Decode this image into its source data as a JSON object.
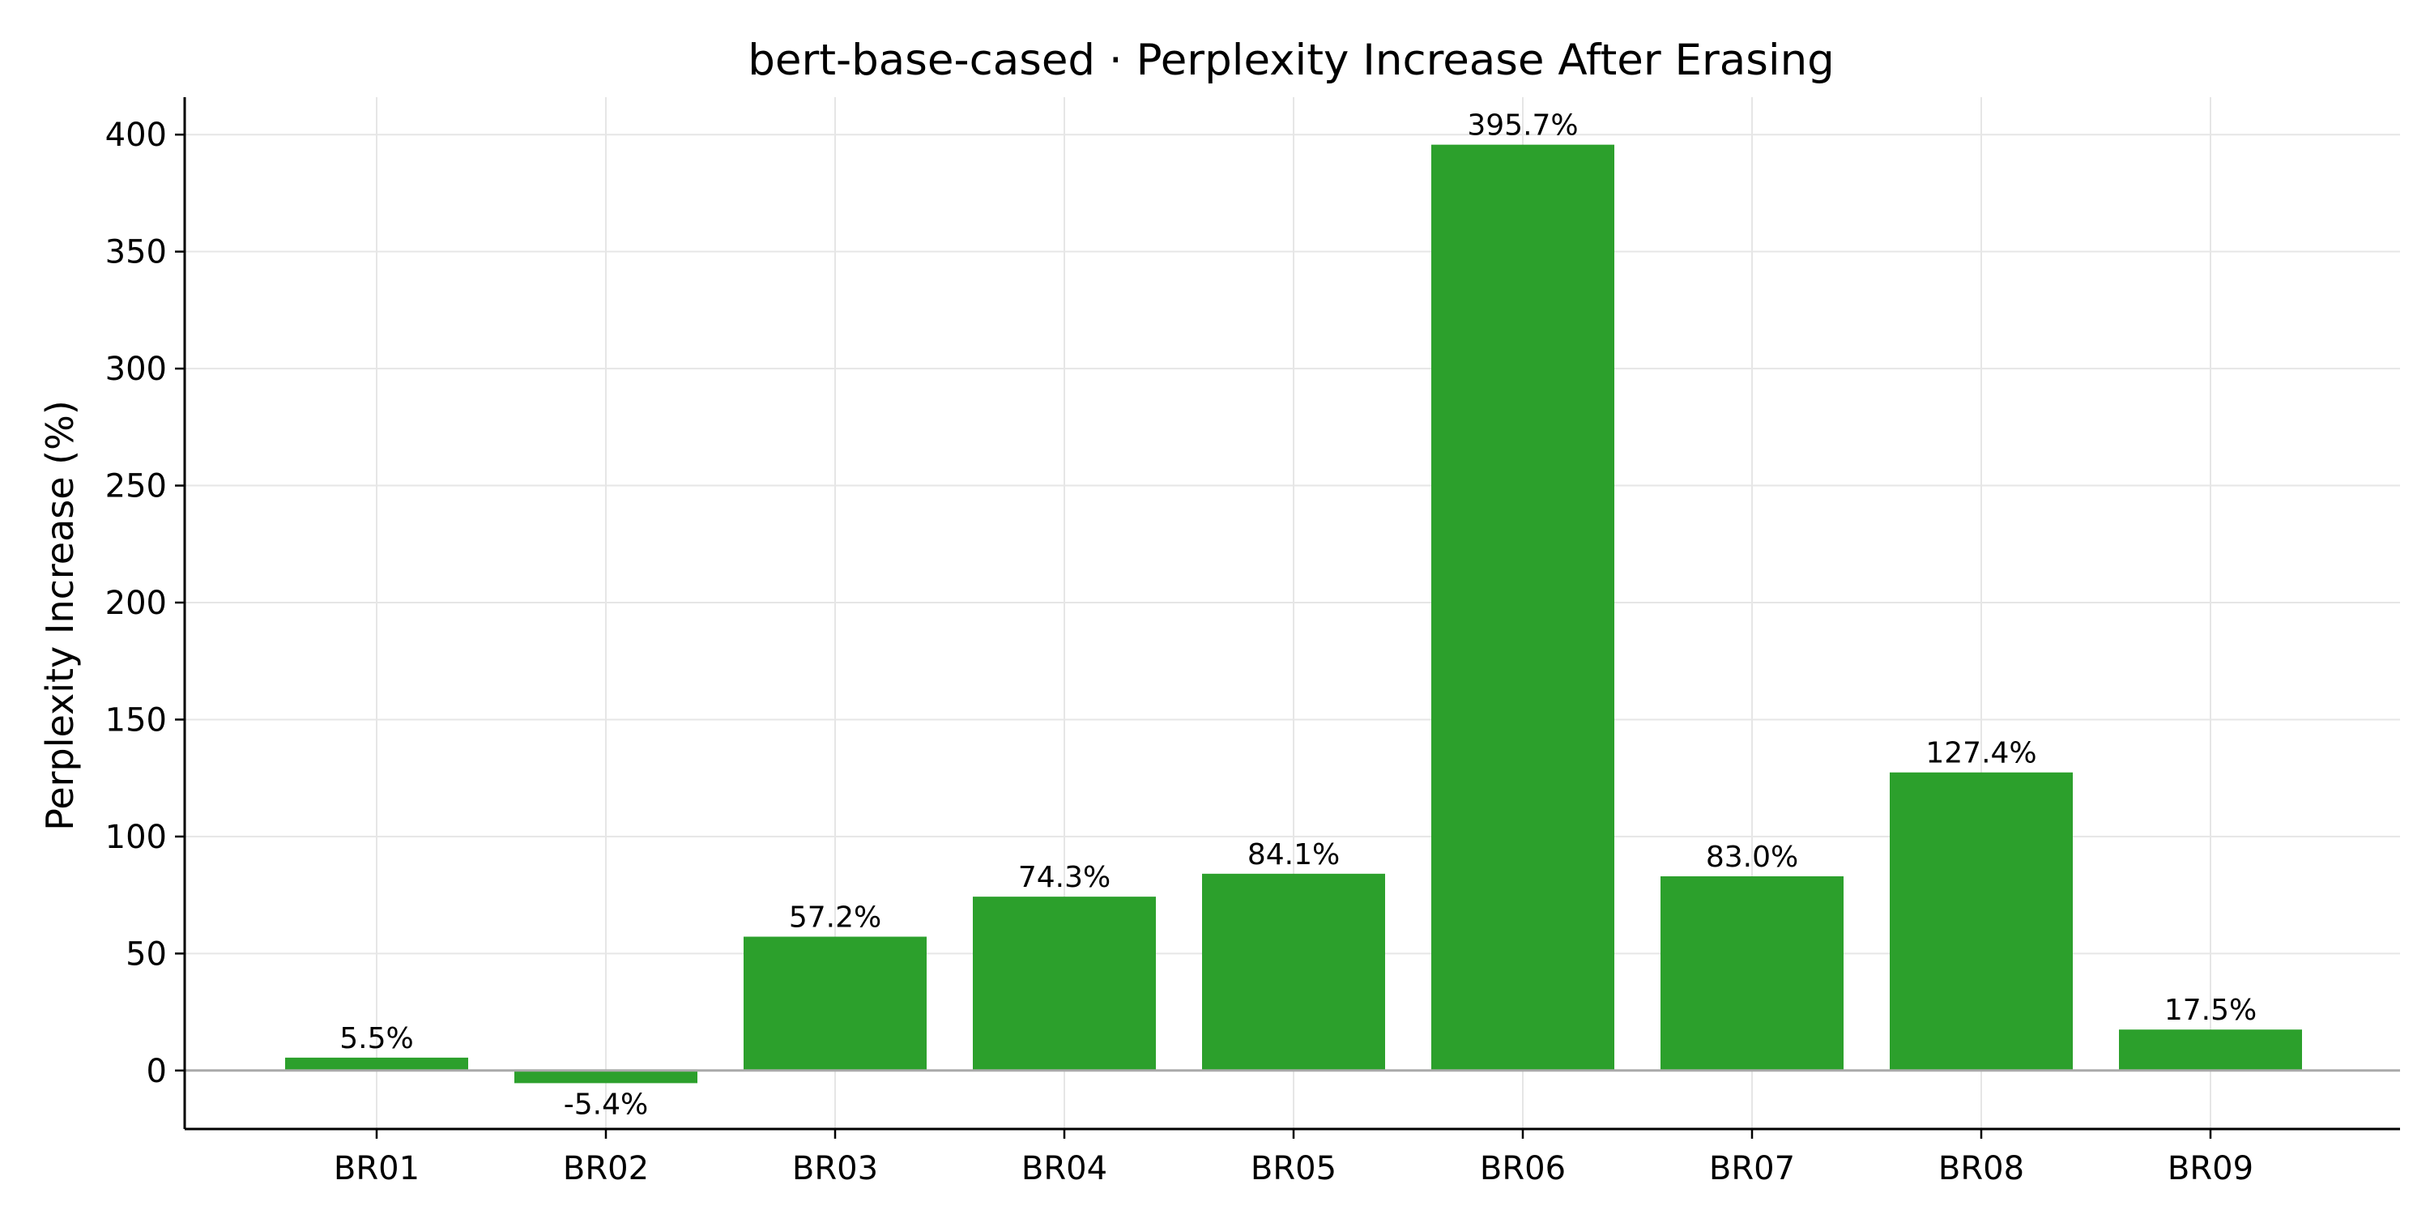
{
  "chart_data": {
    "type": "bar",
    "title": "bert-base-cased · Perplexity Increase After Erasing",
    "xlabel": "",
    "ylabel": "Perplexity Increase (%)",
    "categories": [
      "BR01",
      "BR02",
      "BR03",
      "BR04",
      "BR05",
      "BR06",
      "BR07",
      "BR08",
      "BR09"
    ],
    "values": [
      5.5,
      -5.4,
      57.2,
      74.3,
      84.1,
      395.7,
      83.0,
      127.4,
      17.5
    ],
    "value_labels": [
      "5.5%",
      "-5.4%",
      "57.2%",
      "74.3%",
      "84.1%",
      "395.7%",
      "83.0%",
      "127.4%",
      "17.5%"
    ],
    "yticks": [
      0,
      50,
      100,
      150,
      200,
      250,
      300,
      350,
      400
    ],
    "ylim": [
      -25,
      416
    ],
    "grid": true,
    "legend": "none",
    "zero_line": true,
    "colors": {
      "bar": "#2ca02c",
      "grid": "#e6e6e6",
      "zero_line": "#aaaaaa",
      "axis": "#000000"
    }
  }
}
